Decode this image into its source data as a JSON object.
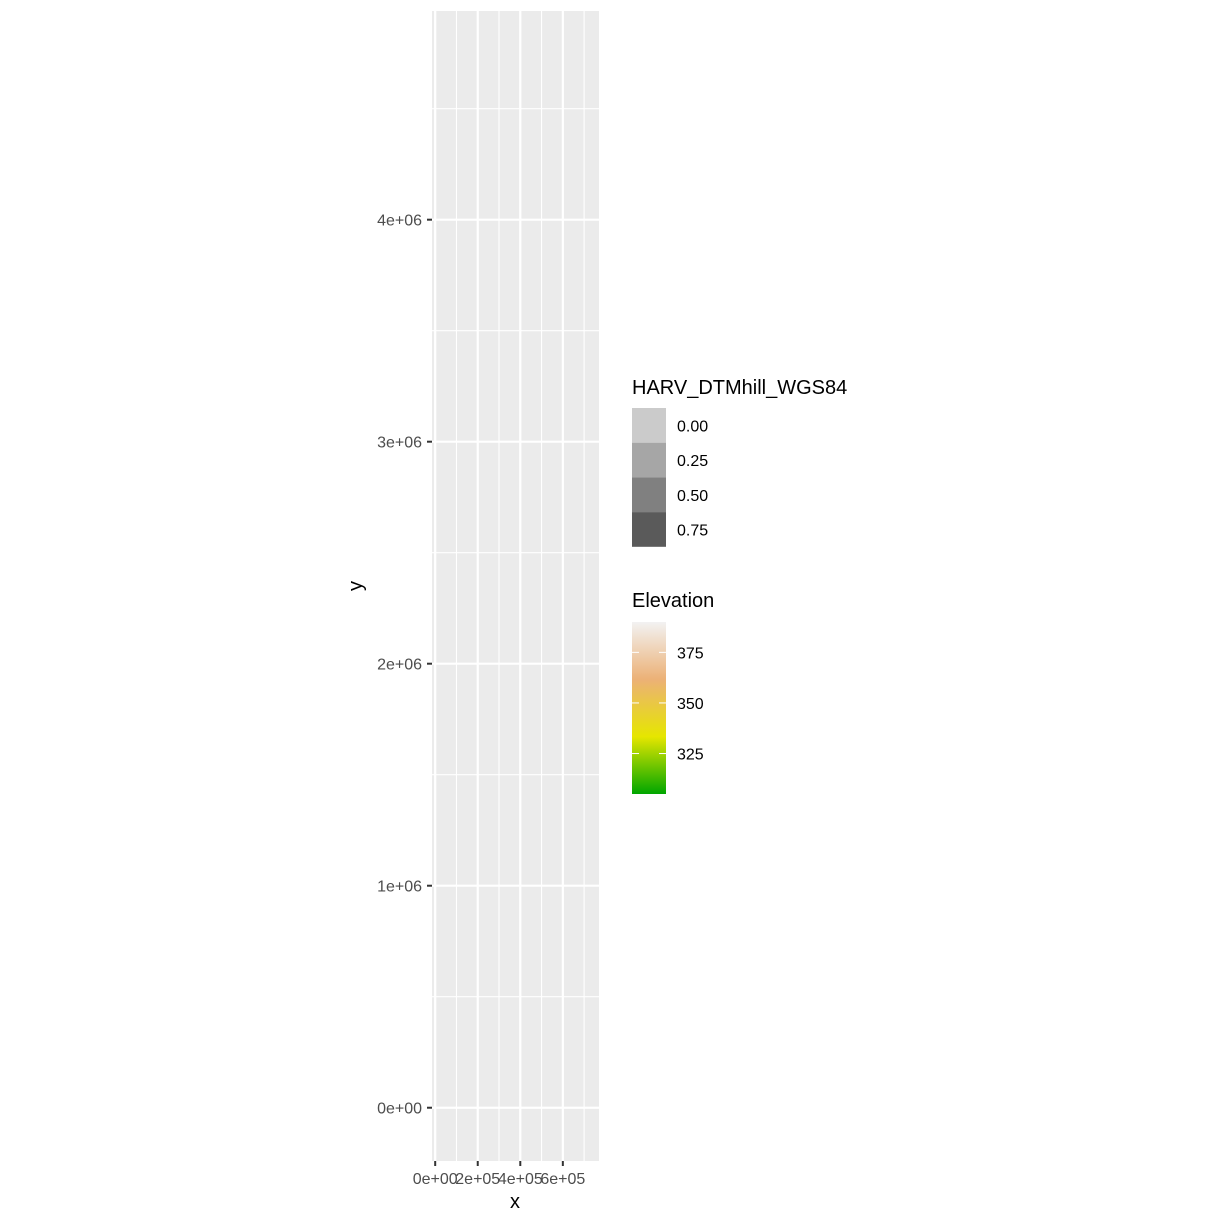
{
  "chart_data": {
    "type": "heatmap",
    "xlabel": "x",
    "ylabel": "y",
    "xlim": [
      -15000,
      770000
    ],
    "ylim": [
      -240000,
      4940000
    ],
    "x_ticks": [
      {
        "value": 0,
        "label": "0e+00"
      },
      {
        "value": 200000,
        "label": "2e+05"
      },
      {
        "value": 400000,
        "label": "4e+05"
      },
      {
        "value": 600000,
        "label": "6e+05"
      }
    ],
    "y_ticks": [
      {
        "value": 0,
        "label": "0e+00"
      },
      {
        "value": 1000000,
        "label": "1e+06"
      },
      {
        "value": 2000000,
        "label": "2e+06"
      },
      {
        "value": 3000000,
        "label": "3e+06"
      },
      {
        "value": 4000000,
        "label": "4e+06"
      }
    ],
    "grid": true,
    "panel_background": "#EBEBEB",
    "legend_position": "right",
    "legends": [
      {
        "title": "HARV_DTMhill_WGS84",
        "kind": "alpha",
        "entries": [
          {
            "label": "0.00",
            "color": "#CBCBCB"
          },
          {
            "label": "0.25",
            "color": "#A6A6A6"
          },
          {
            "label": "0.50",
            "color": "#808080"
          },
          {
            "label": "0.75",
            "color": "#5A5A5A"
          }
        ]
      },
      {
        "title": "Elevation",
        "kind": "colorbar",
        "range": [
          305,
          390
        ],
        "breaks": [
          {
            "value": 375,
            "label": "375"
          },
          {
            "value": 350,
            "label": "350"
          },
          {
            "value": 325,
            "label": "325"
          }
        ],
        "gradient": [
          "#00A600",
          "#E6E600",
          "#ECB176",
          "#F2F2F2"
        ]
      }
    ]
  }
}
